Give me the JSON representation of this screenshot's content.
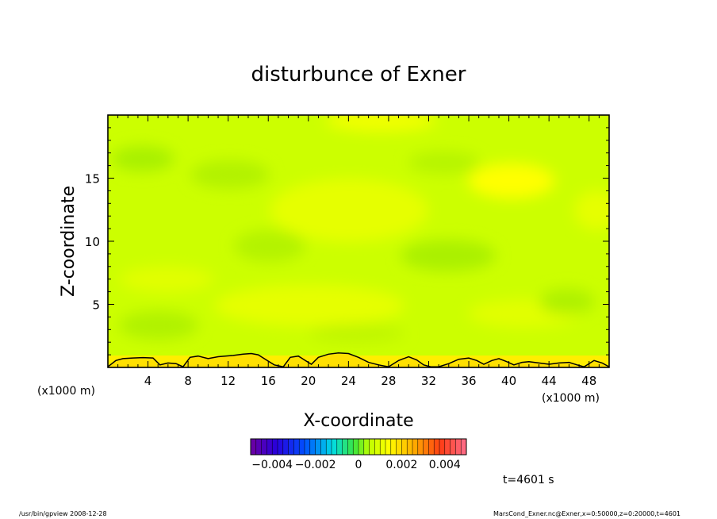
{
  "chart_data": {
    "type": "heatmap",
    "title": "disturbunce of Exner",
    "xlabel": "X-coordinate",
    "ylabel": "Z-coordinate",
    "x_unit_left": "(x1000 m)",
    "x_unit_right": "(x1000 m)",
    "xlim": [
      0,
      50
    ],
    "ylim": [
      0,
      20
    ],
    "x_ticks": [
      4,
      8,
      12,
      16,
      20,
      24,
      28,
      32,
      36,
      40,
      44,
      48
    ],
    "y_ticks": [
      5,
      10,
      15
    ],
    "colorbar": {
      "range": [
        -0.005,
        0.005
      ],
      "tick_values": [
        -0.004,
        -0.002,
        0,
        0.002,
        0.004
      ],
      "tick_labels": [
        "−0.004",
        "−0.002",
        "0",
        "0.002",
        "0.004"
      ]
    },
    "colors": {
      "background_field": "#ccff00",
      "contour_line": "#000000"
    },
    "contour_line": {
      "x": [
        0,
        0.8,
        1.5,
        2.5,
        3.5,
        4.5,
        5.2,
        6.0,
        6.8,
        7.5,
        8.2,
        9.0,
        10.0,
        11.0,
        12.5,
        13.5,
        14.3,
        15.0,
        15.8,
        16.6,
        17.5,
        18.2,
        19.0,
        19.6,
        20.3,
        21.0,
        22.0,
        23.0,
        24.0,
        25.0,
        26.0,
        27.0,
        28.0,
        29.0,
        30.0,
        30.8,
        31.5,
        32.2,
        33.0,
        34.0,
        35.0,
        36.0,
        36.8,
        37.5,
        38.3,
        39.0,
        39.8,
        40.5,
        41.3,
        42.0,
        43.0,
        44.0,
        45.0,
        46.0,
        46.8,
        47.5,
        48.5,
        49.3,
        50.0
      ],
      "z": [
        0.05,
        0.55,
        0.7,
        0.75,
        0.78,
        0.75,
        0.2,
        0.35,
        0.3,
        0.05,
        0.8,
        0.9,
        0.7,
        0.85,
        0.95,
        1.05,
        1.1,
        1.0,
        0.6,
        0.2,
        0.05,
        0.8,
        0.9,
        0.6,
        0.25,
        0.8,
        1.05,
        1.15,
        1.1,
        0.8,
        0.4,
        0.2,
        0.05,
        0.55,
        0.85,
        0.6,
        0.2,
        0.05,
        0.05,
        0.3,
        0.65,
        0.75,
        0.55,
        0.25,
        0.55,
        0.7,
        0.45,
        0.2,
        0.4,
        0.45,
        0.35,
        0.25,
        0.35,
        0.4,
        0.2,
        0.05,
        0.55,
        0.35,
        0.05
      ]
    }
  },
  "time_label": "t=4601 s",
  "footer": {
    "left": "/usr/bin/gpview   2008-12-28",
    "right": "MarsCond_Exner.nc@Exner,x=0:50000,z=0:20000,t=4601"
  }
}
